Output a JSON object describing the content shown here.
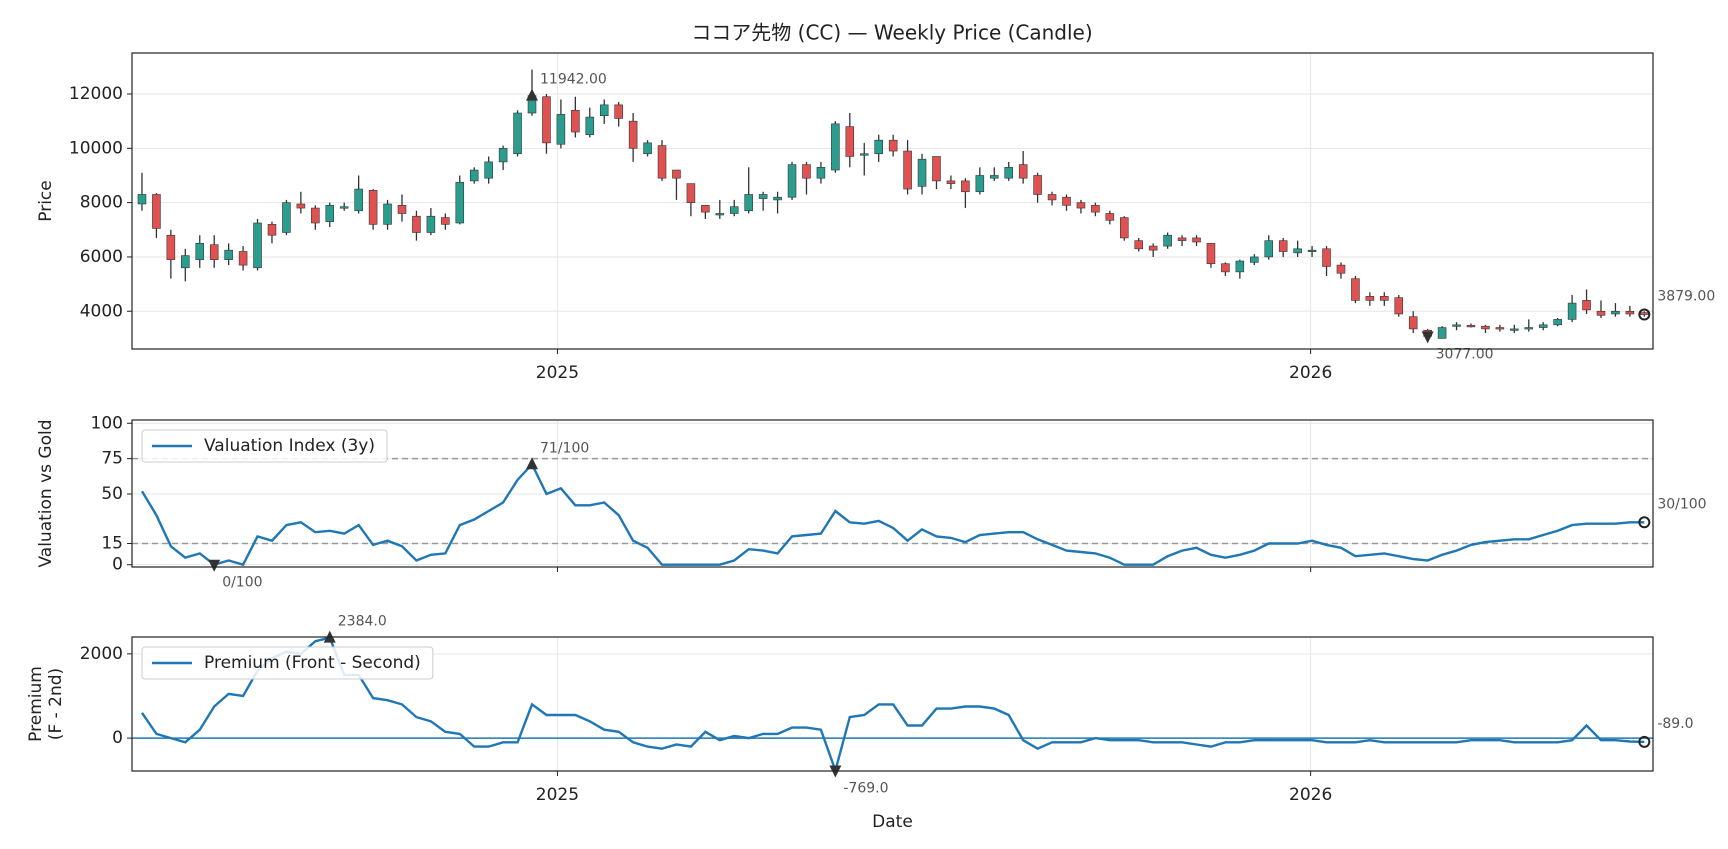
{
  "chart_data": [
    {
      "type": "candlestick",
      "title": "ココア先物 (CC) — Weekly Price (Candle)",
      "ylabel": "Price",
      "up_color": "#2a9d8f",
      "down_color": "#e05252",
      "wick_color": "#333333",
      "grid": true,
      "xlim": [
        -0.69,
        104.6
      ],
      "xticks": [
        {
          "value": 28.76,
          "label": "2025"
        },
        {
          "value": 80.9,
          "label": "2026"
        }
      ],
      "xtick_labels": true,
      "ylim": [
        2610,
        13510
      ],
      "yticks": [
        4000,
        6000,
        8000,
        10000,
        12000
      ],
      "open": [
        7950,
        8300,
        6800,
        5600,
        5900,
        6450,
        5900,
        6200,
        5600,
        7200,
        6900,
        7950,
        7800,
        7300,
        7800,
        7700,
        8450,
        7200,
        7900,
        7500,
        6900,
        7450,
        7250,
        8800,
        8900,
        9500,
        9800,
        11300,
        11900,
        10150,
        11400,
        10500,
        11200,
        11600,
        11000,
        9800,
        10100,
        9200,
        8700,
        7900,
        7550,
        7600,
        7700,
        8150,
        8100,
        8200,
        9400,
        8900,
        9200,
        10800,
        9750,
        9800,
        10300,
        9900,
        8600,
        9700,
        8800,
        8800,
        8400,
        8900,
        8900,
        9400,
        9000,
        8300,
        8200,
        8000,
        7900,
        7600,
        7450,
        6600,
        6400,
        6400,
        6700,
        6700,
        6500,
        5750,
        5450,
        5800,
        6000,
        6600,
        6150,
        6200,
        6300,
        5700,
        5200,
        4550,
        4550,
        4500,
        3800,
        3300,
        3000,
        3450,
        3480,
        3450,
        3400,
        3350,
        3380,
        3400,
        3500,
        3700,
        4400,
        4000,
        3900,
        4000,
        3950
      ],
      "high": [
        9100,
        8350,
        7000,
        6300,
        6800,
        6800,
        6500,
        6400,
        7400,
        7300,
        8100,
        8400,
        7900,
        8000,
        8000,
        9000,
        8500,
        8100,
        8300,
        7700,
        7800,
        7600,
        9000,
        9300,
        9700,
        10100,
        11400,
        12900,
        12000,
        11800,
        11900,
        11500,
        11800,
        11700,
        11300,
        10300,
        10300,
        9200,
        8700,
        7900,
        8100,
        8100,
        9300,
        8400,
        8400,
        9500,
        9500,
        9500,
        11000,
        11300,
        10200,
        10500,
        10500,
        10300,
        9800,
        9700,
        9000,
        8900,
        9300,
        9300,
        9500,
        9900,
        9100,
        8400,
        8300,
        8100,
        8000,
        7700,
        7500,
        6700,
        6500,
        6900,
        6800,
        6800,
        6500,
        5800,
        5900,
        6100,
        6800,
        6700,
        6600,
        6400,
        6400,
        5800,
        5300,
        4700,
        4700,
        4600,
        4000,
        3350,
        3450,
        3600,
        3550,
        3500,
        3500,
        3500,
        3700,
        3600,
        3750,
        4600,
        4800,
        4400,
        4300,
        4200,
        4000
      ],
      "low": [
        7700,
        6700,
        5200,
        5100,
        5600,
        5600,
        5700,
        5500,
        5500,
        6500,
        6800,
        7600,
        7000,
        7100,
        7700,
        7600,
        7000,
        7000,
        7300,
        6600,
        6800,
        7000,
        7200,
        8700,
        8700,
        9200,
        9700,
        11200,
        9800,
        10000,
        10400,
        10400,
        10900,
        10800,
        9500,
        9700,
        8800,
        8100,
        7500,
        7400,
        7400,
        7500,
        7600,
        7700,
        7600,
        8100,
        8300,
        8700,
        9100,
        9300,
        9000,
        9500,
        9700,
        8300,
        8300,
        8500,
        8500,
        7800,
        8300,
        8800,
        8800,
        8700,
        8000,
        7900,
        7700,
        7600,
        7500,
        7200,
        6600,
        6200,
        6000,
        6300,
        6400,
        6400,
        5600,
        5300,
        5200,
        5700,
        5900,
        6000,
        6000,
        6000,
        5300,
        5200,
        4300,
        4200,
        4200,
        3800,
        3200,
        2900,
        3000,
        3300,
        3400,
        3200,
        3250,
        3200,
        3250,
        3300,
        3450,
        3600,
        3900,
        3750,
        3800,
        3800,
        3800
      ],
      "close": [
        8300,
        7050,
        5900,
        6050,
        6500,
        5900,
        6250,
        5700,
        7250,
        6800,
        8000,
        7800,
        7250,
        7900,
        7850,
        8500,
        7200,
        7950,
        7600,
        6900,
        7500,
        7200,
        8750,
        9200,
        9500,
        10000,
        11300,
        11942,
        10200,
        11250,
        10600,
        11150,
        11600,
        11100,
        10000,
        10200,
        8900,
        8900,
        8000,
        7650,
        7600,
        7850,
        8300,
        8300,
        8200,
        9400,
        8900,
        9300,
        10900,
        9700,
        9800,
        10300,
        9900,
        8500,
        9600,
        8800,
        8700,
        8400,
        9000,
        9000,
        9300,
        8900,
        8300,
        8100,
        7900,
        7800,
        7650,
        7350,
        6700,
        6300,
        6250,
        6800,
        6600,
        6550,
        5750,
        5450,
        5850,
        6000,
        6600,
        6200,
        6300,
        6250,
        5650,
        5400,
        4400,
        4400,
        4400,
        3900,
        3350,
        3077,
        3400,
        3500,
        3450,
        3350,
        3350,
        3350,
        3400,
        3500,
        3700,
        4300,
        4050,
        3850,
        4000,
        3900,
        3879
      ],
      "annotations": [
        {
          "label": "11942.00",
          "x": 27,
          "value": 11942,
          "marker": "up"
        },
        {
          "label": "3077.00",
          "x": 89,
          "value": 3077,
          "marker": "down"
        },
        {
          "label": "3879.00",
          "x": 104,
          "value": 3879,
          "marker": "circle"
        }
      ]
    },
    {
      "type": "line",
      "ylabel": "Valuation vs Gold",
      "grid": true,
      "legend": "upper left",
      "xlim": [
        -0.69,
        104.6
      ],
      "xticks": [
        28.76,
        80.9
      ],
      "xtick_labels": false,
      "ylim": [
        -1.6,
        102.3
      ],
      "yticks": [
        0,
        15,
        50,
        75,
        100
      ],
      "hlines": [
        75,
        15
      ],
      "hline_style": "dashed",
      "hline_color": "#999999",
      "series": [
        {
          "name": "Valuation Index (3y)",
          "color": "#1f77b4",
          "values": [
            52,
            35,
            13,
            5,
            8,
            0,
            3,
            0,
            20,
            17,
            28,
            30,
            23,
            24,
            22,
            28,
            14,
            17,
            13,
            3,
            7,
            8,
            28,
            32,
            38,
            44,
            60,
            71,
            50,
            54,
            42,
            42,
            44,
            35,
            17,
            12,
            0,
            0,
            0,
            0,
            0,
            3,
            11,
            10,
            8,
            20,
            21,
            22,
            38,
            30,
            29,
            31,
            26,
            17,
            25,
            20,
            19,
            16,
            21,
            22,
            23,
            23,
            18,
            14,
            10,
            9,
            8,
            5,
            0,
            0,
            0,
            6,
            10,
            12,
            7,
            5,
            7,
            10,
            15,
            15,
            15,
            17,
            14,
            12,
            6,
            7,
            8,
            6,
            4,
            3,
            7,
            10,
            14,
            16,
            17,
            18,
            18,
            21,
            24,
            28,
            29,
            29,
            29,
            30,
            30
          ]
        }
      ],
      "annotations": [
        {
          "label": "71/100",
          "x": 27,
          "value": 71,
          "marker": "up"
        },
        {
          "label": "0/100",
          "x": 5,
          "value": 0,
          "marker": "down"
        },
        {
          "label": "30/100",
          "x": 104,
          "value": 30,
          "marker": "circle"
        }
      ]
    },
    {
      "type": "line",
      "ylabel": [
        "Premium",
        "(F - 2nd)"
      ],
      "xlabel": "Date",
      "grid": true,
      "legend": "upper left",
      "xlim": [
        -0.69,
        104.6
      ],
      "xticks": [
        {
          "value": 28.76,
          "label": "2025"
        },
        {
          "value": 80.9,
          "label": "2026"
        }
      ],
      "xtick_labels": true,
      "ylim": [
        -780,
        2400
      ],
      "yticks": [
        0,
        2000
      ],
      "hlines": [
        0
      ],
      "hline_style": "solid",
      "hline_color": "#1f77b4",
      "series": [
        {
          "name": "Premium (Front - Second)",
          "color": "#1f77b4",
          "values": [
            600,
            100,
            0,
            -100,
            200,
            750,
            1050,
            1000,
            1600,
            1900,
            2050,
            2000,
            2300,
            2384,
            1500,
            1500,
            950,
            900,
            800,
            500,
            400,
            150,
            100,
            -200,
            -200,
            -100,
            -100,
            800,
            550,
            550,
            550,
            400,
            200,
            150,
            -100,
            -200,
            -250,
            -150,
            -200,
            150,
            -50,
            50,
            0,
            100,
            100,
            250,
            250,
            200,
            -769,
            500,
            550,
            800,
            800,
            300,
            300,
            700,
            700,
            750,
            750,
            700,
            550,
            -50,
            -250,
            -100,
            -100,
            -100,
            0,
            -50,
            -50,
            -50,
            -100,
            -100,
            -100,
            -150,
            -200,
            -100,
            -100,
            -50,
            -50,
            -50,
            -50,
            -50,
            -100,
            -100,
            -100,
            -50,
            -100,
            -100,
            -100,
            -100,
            -100,
            -100,
            -50,
            -50,
            -50,
            -100,
            -100,
            -100,
            -100,
            -50,
            300,
            -50,
            -50,
            -80,
            -89
          ]
        }
      ],
      "annotations": [
        {
          "label": "2384.0",
          "x": 13,
          "value": 2384,
          "marker": "up"
        },
        {
          "label": "-769.0",
          "x": 48,
          "value": -769,
          "marker": "down"
        },
        {
          "label": "-89.0",
          "x": 104,
          "value": -89,
          "marker": "circle"
        }
      ]
    }
  ]
}
